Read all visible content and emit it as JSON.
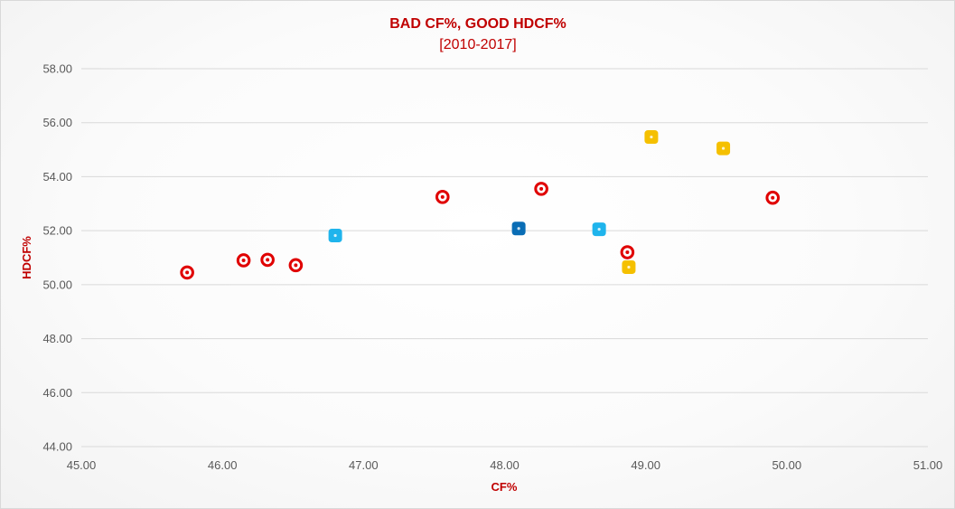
{
  "chart_data": {
    "type": "scatter",
    "title": "BAD CF%, GOOD HDCF%",
    "subtitle": "[2010-2017]",
    "xlabel": "CF%",
    "ylabel": "HDCF%",
    "xlim": [
      45,
      51
    ],
    "ylim": [
      44,
      58
    ],
    "x_ticks": [
      "45.00",
      "46.00",
      "47.00",
      "48.00",
      "49.00",
      "50.00",
      "51.00"
    ],
    "y_ticks": [
      "44.00",
      "46.00",
      "48.00",
      "50.00",
      "52.00",
      "54.00",
      "56.00",
      "58.00"
    ],
    "x_tick_values": [
      45,
      46,
      47,
      48,
      49,
      50,
      51
    ],
    "y_tick_values": [
      44,
      46,
      48,
      50,
      52,
      54,
      56,
      58
    ],
    "grid": "horizontal",
    "legend": "none",
    "colors": {
      "title": "#c00000",
      "red": "#e00000",
      "light_blue": "#1fb4ec",
      "dark_blue": "#0a6db5",
      "gold": "#f5c000",
      "axis_text": "#595959",
      "grid": "#d9d9d9"
    },
    "points": [
      {
        "x": 45.75,
        "y": 50.45,
        "style": "red"
      },
      {
        "x": 46.15,
        "y": 50.9,
        "style": "red"
      },
      {
        "x": 46.32,
        "y": 50.92,
        "style": "red"
      },
      {
        "x": 46.52,
        "y": 50.72,
        "style": "red"
      },
      {
        "x": 46.8,
        "y": 51.82,
        "style": "light_blue"
      },
      {
        "x": 47.56,
        "y": 53.25,
        "style": "red"
      },
      {
        "x": 48.1,
        "y": 52.08,
        "style": "dark_blue"
      },
      {
        "x": 48.26,
        "y": 53.55,
        "style": "red"
      },
      {
        "x": 48.67,
        "y": 52.05,
        "style": "light_blue"
      },
      {
        "x": 48.87,
        "y": 51.2,
        "style": "red"
      },
      {
        "x": 48.88,
        "y": 50.65,
        "style": "gold"
      },
      {
        "x": 49.04,
        "y": 55.47,
        "style": "gold"
      },
      {
        "x": 49.55,
        "y": 55.05,
        "style": "gold"
      },
      {
        "x": 49.9,
        "y": 53.22,
        "style": "red"
      }
    ]
  }
}
